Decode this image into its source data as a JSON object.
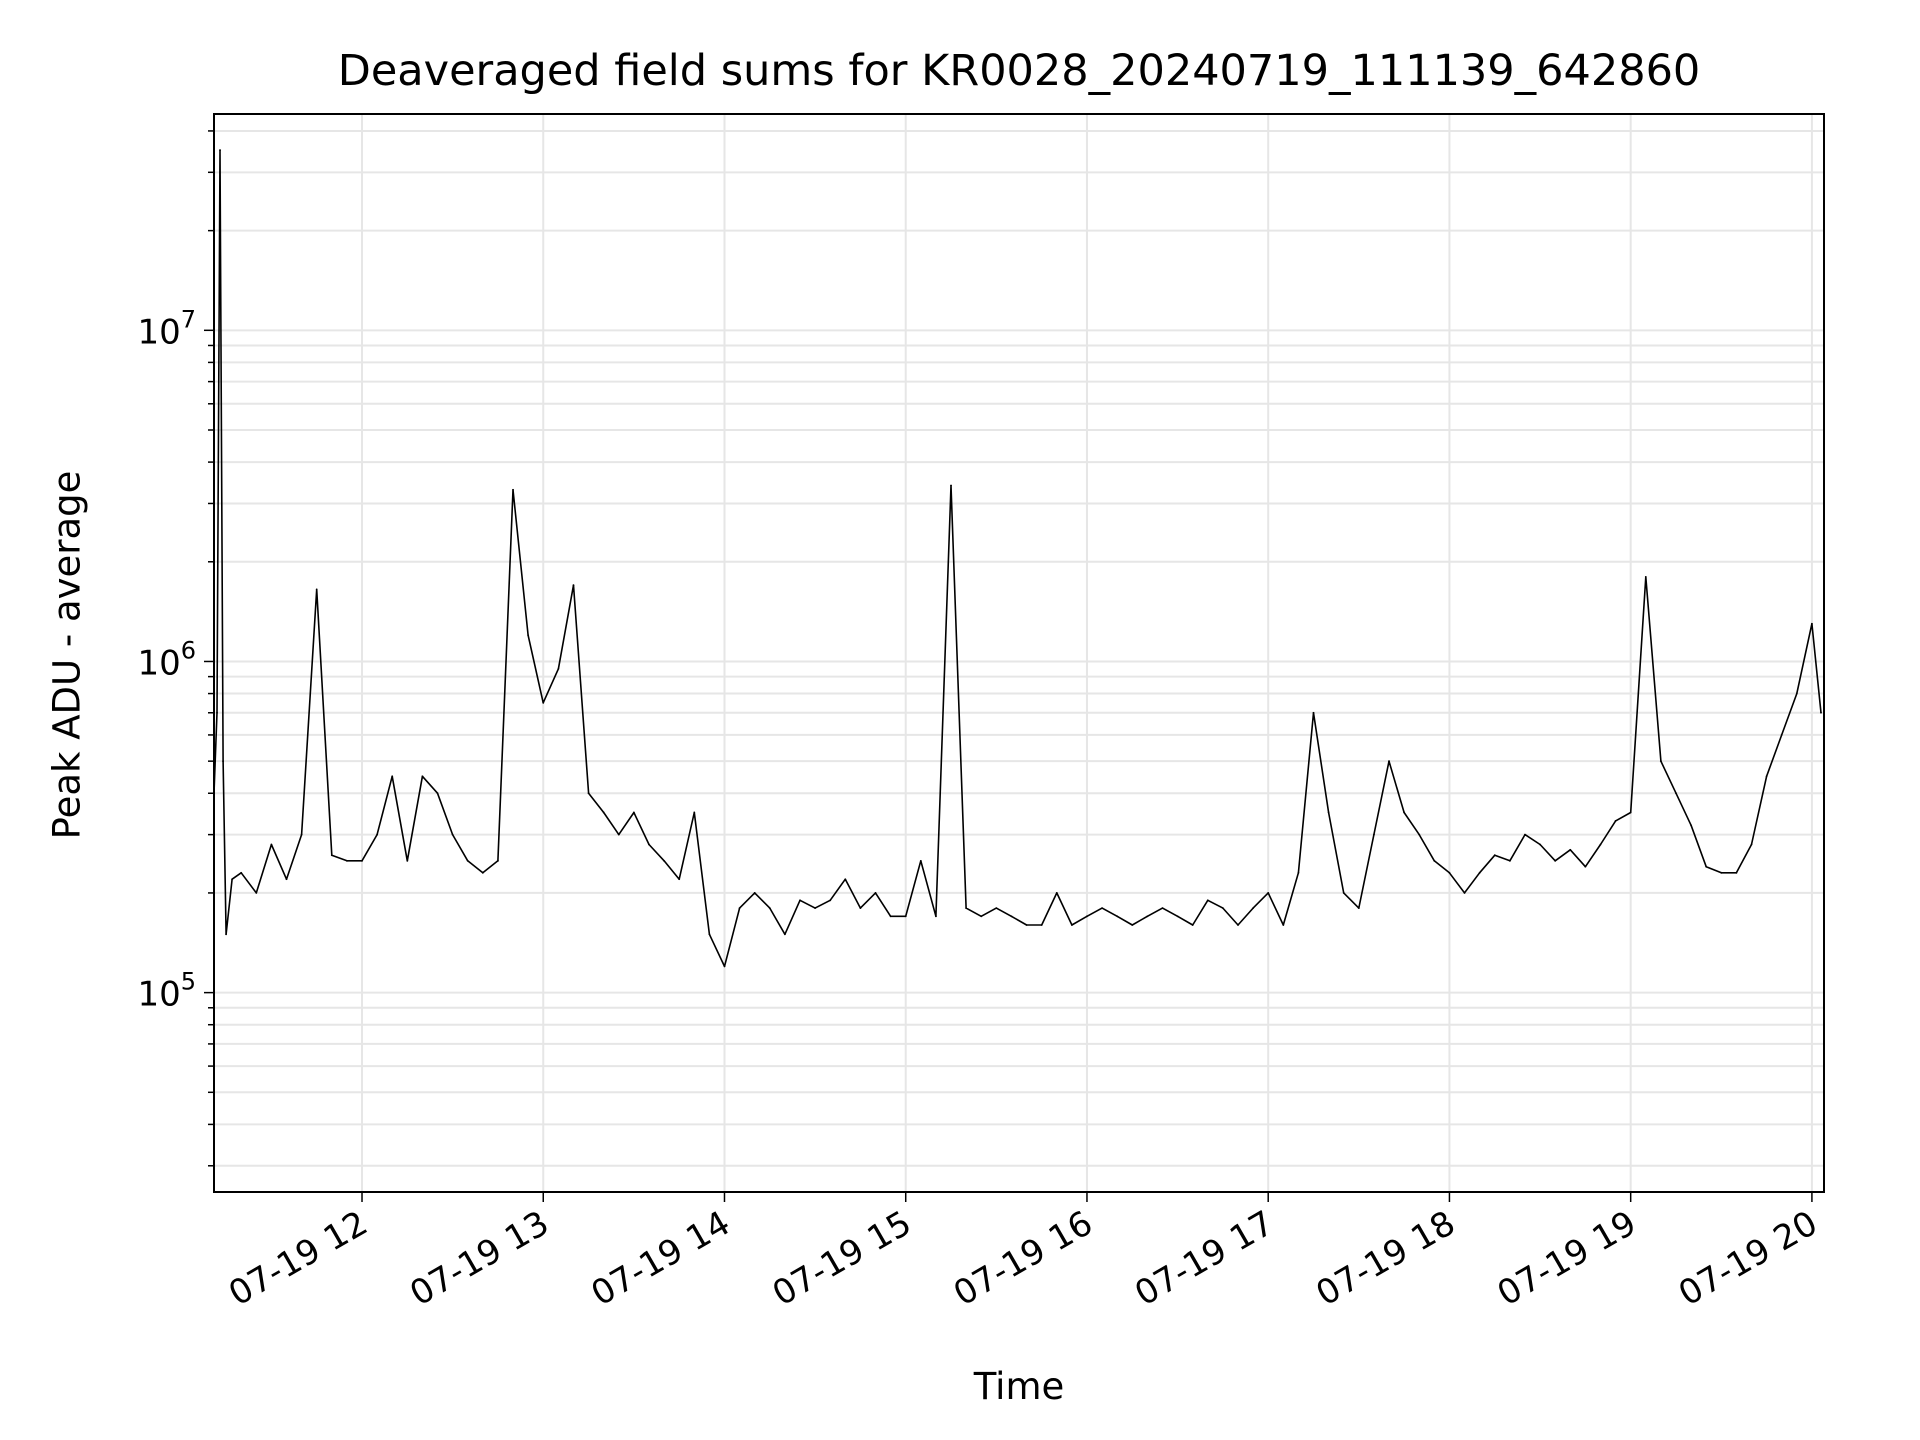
{
  "chart_data": {
    "type": "line",
    "title": "Deaveraged field sums for KR0028_20240719_111139_642860",
    "xlabel": "Time",
    "ylabel": "Peak ADU - average",
    "x_range": [
      "2024-07-19 11:11",
      "2024-07-19 20:04"
    ],
    "x_ticks": [
      {
        "t": "2024-07-19 12:00",
        "label": "07-19 12"
      },
      {
        "t": "2024-07-19 13:00",
        "label": "07-19 13"
      },
      {
        "t": "2024-07-19 14:00",
        "label": "07-19 14"
      },
      {
        "t": "2024-07-19 15:00",
        "label": "07-19 15"
      },
      {
        "t": "2024-07-19 16:00",
        "label": "07-19 16"
      },
      {
        "t": "2024-07-19 17:00",
        "label": "07-19 17"
      },
      {
        "t": "2024-07-19 18:00",
        "label": "07-19 18"
      },
      {
        "t": "2024-07-19 19:00",
        "label": "07-19 19"
      },
      {
        "t": "2024-07-19 20:00",
        "label": "07-19 20"
      }
    ],
    "y_scale": "log",
    "ylim": [
      25000,
      45000000
    ],
    "y_ticks": [
      {
        "value": 100000,
        "base": "10",
        "exp": "5"
      },
      {
        "value": 1000000,
        "base": "10",
        "exp": "6"
      },
      {
        "value": 10000000,
        "base": "10",
        "exp": "7"
      }
    ],
    "grid": true,
    "line_color": "#000000",
    "grid_color": "#e6e6e6",
    "series": [
      {
        "x": [
          "2024-07-19 11:11",
          "2024-07-19 11:12",
          "2024-07-19 11:13",
          "2024-07-19 11:14",
          "2024-07-19 11:15",
          "2024-07-19 11:17",
          "2024-07-19 11:20",
          "2024-07-19 11:25",
          "2024-07-19 11:30",
          "2024-07-19 11:35",
          "2024-07-19 11:40",
          "2024-07-19 11:45",
          "2024-07-19 11:50",
          "2024-07-19 11:55",
          "2024-07-19 12:00",
          "2024-07-19 12:05",
          "2024-07-19 12:10",
          "2024-07-19 12:15",
          "2024-07-19 12:20",
          "2024-07-19 12:25",
          "2024-07-19 12:30",
          "2024-07-19 12:35",
          "2024-07-19 12:40",
          "2024-07-19 12:45",
          "2024-07-19 12:50",
          "2024-07-19 12:55",
          "2024-07-19 13:00",
          "2024-07-19 13:05",
          "2024-07-19 13:10",
          "2024-07-19 13:15",
          "2024-07-19 13:20",
          "2024-07-19 13:25",
          "2024-07-19 13:30",
          "2024-07-19 13:35",
          "2024-07-19 13:40",
          "2024-07-19 13:45",
          "2024-07-19 13:50",
          "2024-07-19 13:55",
          "2024-07-19 14:00",
          "2024-07-19 14:05",
          "2024-07-19 14:10",
          "2024-07-19 14:15",
          "2024-07-19 14:20",
          "2024-07-19 14:25",
          "2024-07-19 14:30",
          "2024-07-19 14:35",
          "2024-07-19 14:40",
          "2024-07-19 14:45",
          "2024-07-19 14:50",
          "2024-07-19 14:55",
          "2024-07-19 15:00",
          "2024-07-19 15:05",
          "2024-07-19 15:10",
          "2024-07-19 15:15",
          "2024-07-19 15:20",
          "2024-07-19 15:25",
          "2024-07-19 15:30",
          "2024-07-19 15:35",
          "2024-07-19 15:40",
          "2024-07-19 15:45",
          "2024-07-19 15:50",
          "2024-07-19 15:55",
          "2024-07-19 16:00",
          "2024-07-19 16:05",
          "2024-07-19 16:10",
          "2024-07-19 16:15",
          "2024-07-19 16:20",
          "2024-07-19 16:25",
          "2024-07-19 16:30",
          "2024-07-19 16:35",
          "2024-07-19 16:40",
          "2024-07-19 16:45",
          "2024-07-19 16:50",
          "2024-07-19 16:55",
          "2024-07-19 17:00",
          "2024-07-19 17:05",
          "2024-07-19 17:10",
          "2024-07-19 17:15",
          "2024-07-19 17:20",
          "2024-07-19 17:25",
          "2024-07-19 17:30",
          "2024-07-19 17:35",
          "2024-07-19 17:40",
          "2024-07-19 17:45",
          "2024-07-19 17:50",
          "2024-07-19 17:55",
          "2024-07-19 18:00",
          "2024-07-19 18:05",
          "2024-07-19 18:10",
          "2024-07-19 18:15",
          "2024-07-19 18:20",
          "2024-07-19 18:25",
          "2024-07-19 18:30",
          "2024-07-19 18:35",
          "2024-07-19 18:40",
          "2024-07-19 18:45",
          "2024-07-19 18:50",
          "2024-07-19 18:55",
          "2024-07-19 19:00",
          "2024-07-19 19:05",
          "2024-07-19 19:10",
          "2024-07-19 19:15",
          "2024-07-19 19:20",
          "2024-07-19 19:25",
          "2024-07-19 19:30",
          "2024-07-19 19:35",
          "2024-07-19 19:40",
          "2024-07-19 19:45",
          "2024-07-19 19:50",
          "2024-07-19 19:55",
          "2024-07-19 20:00",
          "2024-07-19 20:03"
        ],
        "y": [
          400000,
          700000,
          35000000,
          500000,
          150000,
          220000,
          230000,
          200000,
          280000,
          220000,
          300000,
          1650000,
          260000,
          250000,
          250000,
          300000,
          450000,
          250000,
          450000,
          400000,
          300000,
          250000,
          230000,
          250000,
          3300000,
          1200000,
          750000,
          950000,
          1700000,
          400000,
          350000,
          300000,
          350000,
          280000,
          250000,
          220000,
          350000,
          150000,
          120000,
          180000,
          200000,
          180000,
          150000,
          190000,
          180000,
          190000,
          220000,
          180000,
          200000,
          170000,
          170000,
          250000,
          170000,
          3400000,
          180000,
          170000,
          180000,
          170000,
          160000,
          160000,
          200000,
          160000,
          170000,
          180000,
          170000,
          160000,
          170000,
          180000,
          170000,
          160000,
          190000,
          180000,
          160000,
          180000,
          200000,
          160000,
          230000,
          700000,
          350000,
          200000,
          180000,
          300000,
          500000,
          350000,
          300000,
          250000,
          230000,
          200000,
          230000,
          260000,
          250000,
          300000,
          280000,
          250000,
          270000,
          240000,
          280000,
          330000,
          350000,
          1800000,
          500000,
          400000,
          320000,
          240000,
          230000,
          230000,
          280000,
          450000,
          600000,
          800000,
          1300000,
          700000
        ]
      }
    ]
  }
}
